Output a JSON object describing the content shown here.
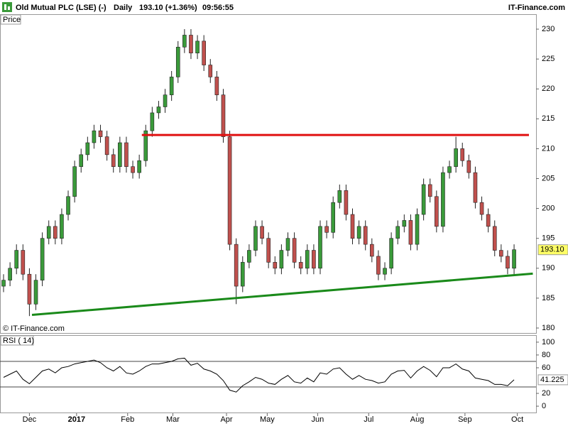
{
  "chart_data": {
    "type": "candlestick",
    "header": {
      "title": "Old Mutual PLC (LSE) (-)",
      "period": "Daily",
      "quote": "193.10 (+1.36%)",
      "time": "09:56:55",
      "brand": "IT-Finance.com"
    },
    "panel_label": "Price",
    "watermark": "© IT-Finance.com",
    "xlim": [
      -0.55,
      82.4
    ],
    "xticks": [
      {
        "value": 4,
        "label": "Dec"
      },
      {
        "value": 11.3,
        "label": "2017"
      },
      {
        "value": 19.2,
        "label": "Feb"
      },
      {
        "value": 26.2,
        "label": "Mar"
      },
      {
        "value": 34.5,
        "label": "Apr"
      },
      {
        "value": 40.8,
        "label": "May"
      },
      {
        "value": 48.6,
        "label": "Jun"
      },
      {
        "value": 56.5,
        "label": "Jul"
      },
      {
        "value": 64,
        "label": "Aug"
      },
      {
        "value": 71.4,
        "label": "Sep"
      },
      {
        "value": 79.5,
        "label": "Oct"
      }
    ],
    "ylim": [
      179.05,
      232.5
    ],
    "yticks": [
      180,
      185,
      190,
      195,
      200,
      205,
      210,
      215,
      220,
      225,
      230
    ],
    "up_color": "#3a9a3a",
    "down_color": "#c0504d",
    "open": [
      187,
      188,
      190,
      193,
      189,
      184,
      188,
      195,
      197,
      195,
      199,
      202,
      207,
      209,
      211,
      213,
      212,
      209,
      207,
      211,
      207,
      206,
      208,
      213,
      216,
      217,
      219,
      222,
      227,
      229,
      226,
      228,
      224,
      222,
      219,
      212,
      194,
      187,
      191,
      193,
      197,
      195,
      191,
      190,
      193,
      195,
      191,
      190,
      193,
      190,
      197,
      196,
      201,
      203,
      199,
      195,
      197,
      194,
      192,
      189,
      190,
      195,
      197,
      198,
      194,
      199,
      204,
      202,
      197,
      206,
      207,
      210,
      208,
      206,
      201,
      199,
      197,
      193,
      192,
      190
    ],
    "high": [
      189,
      191,
      194,
      194,
      190,
      189,
      196,
      198,
      198,
      200,
      203,
      208,
      210,
      212,
      214,
      214,
      213,
      210,
      212,
      212,
      208,
      209,
      214,
      217,
      218,
      220,
      223,
      228,
      230,
      230,
      229,
      229,
      225,
      223,
      220,
      213,
      195,
      192,
      194,
      198,
      198,
      196,
      192,
      194,
      196,
      196,
      192,
      194,
      194,
      198,
      198,
      202,
      204,
      204,
      200,
      198,
      198,
      195,
      193,
      191,
      196,
      198,
      199,
      199,
      200,
      205,
      205,
      203,
      207,
      208,
      212,
      211,
      209,
      207,
      202,
      200,
      198,
      194,
      193,
      194
    ],
    "low": [
      186,
      187,
      189,
      188,
      182,
      183,
      187,
      194,
      194,
      194,
      198,
      201,
      206,
      208,
      210,
      211,
      208,
      206,
      206,
      206,
      205,
      205,
      207,
      212,
      215,
      216,
      218,
      221,
      226,
      225,
      225,
      223,
      221,
      218,
      211,
      193,
      184,
      186,
      190,
      192,
      194,
      190,
      189,
      189,
      192,
      190,
      189,
      189,
      189,
      189,
      195,
      195,
      200,
      198,
      194,
      194,
      193,
      191,
      188,
      188,
      189,
      194,
      196,
      193,
      193,
      198,
      201,
      196,
      196,
      205,
      206,
      207,
      205,
      200,
      198,
      196,
      192,
      191,
      189,
      189
    ],
    "close": [
      188,
      190,
      193,
      189,
      184,
      188,
      195,
      197,
      195,
      199,
      202,
      207,
      209,
      211,
      213,
      212,
      209,
      207,
      211,
      207,
      206,
      208,
      213,
      216,
      217,
      219,
      222,
      227,
      229,
      226,
      228,
      224,
      222,
      219,
      212,
      194,
      187,
      191,
      193,
      197,
      195,
      191,
      190,
      193,
      195,
      191,
      190,
      193,
      190,
      197,
      196,
      201,
      203,
      199,
      195,
      197,
      194,
      192,
      189,
      190,
      195,
      197,
      198,
      194,
      199,
      204,
      202,
      197,
      206,
      207,
      210,
      208,
      206,
      201,
      199,
      197,
      193,
      192,
      190,
      193.1
    ],
    "last_close_label": "193.10",
    "lines": [
      {
        "color": "#e01010",
        "points": [
          [
            21.4,
            212.3
          ],
          [
            81.3,
            212.3
          ]
        ]
      },
      {
        "color": "#1a8a1a",
        "points": [
          [
            4.4,
            182.2
          ],
          [
            81.9,
            189.1
          ]
        ]
      }
    ],
    "rsi": {
      "label": "RSI ( 14)",
      "ylim": [
        -11,
        111
      ],
      "yticks": [
        0,
        20,
        60,
        80,
        100
      ],
      "levels": [
        70,
        30
      ],
      "color": "#000000",
      "values": [
        45,
        50,
        55,
        42,
        35,
        45,
        55,
        58,
        52,
        60,
        62,
        66,
        68,
        70,
        72,
        68,
        60,
        55,
        62,
        52,
        50,
        55,
        62,
        66,
        66,
        68,
        70,
        74,
        75,
        64,
        67,
        58,
        55,
        50,
        40,
        25,
        22,
        32,
        38,
        45,
        42,
        36,
        34,
        42,
        48,
        38,
        36,
        44,
        38,
        52,
        50,
        58,
        60,
        50,
        42,
        48,
        42,
        40,
        36,
        38,
        50,
        55,
        56,
        44,
        55,
        62,
        56,
        46,
        60,
        60,
        66,
        58,
        55,
        44,
        42,
        40,
        34,
        34,
        32,
        41.225
      ]
    }
  }
}
